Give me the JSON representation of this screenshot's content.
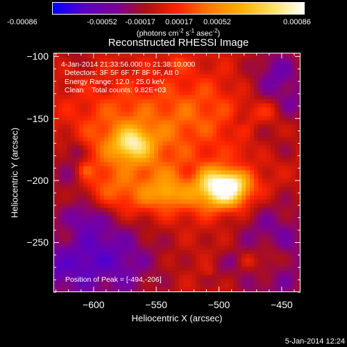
{
  "colorbar": {
    "ticks": [
      "-0.00086",
      "-0.00052",
      "-0.00017",
      "0.00017",
      "0.00052",
      "0.00086"
    ],
    "units_prefix": "(photons cm",
    "units_exp1": "-2",
    "units_mid1": " s",
    "units_exp2": "-1",
    "units_mid2": " asec",
    "units_exp3": "-2",
    "units_suffix": ")",
    "stops": [
      "#0000ff",
      "#5a00c8",
      "#7a009a",
      "#b01010",
      "#ff2400",
      "#ff7a00",
      "#ffb000",
      "#ffe060",
      "#ffffff"
    ]
  },
  "title": "Reconstructed RHESSI Image",
  "annotations": {
    "time_range": "4-Jan-2014 21:33:56.000 to 21:38:10.000",
    "detectors": "Detectors: 3F 5F 6F 7F 8F 9F, Att 0",
    "energy": "Energy Range: 12.0 - 25.0 keV",
    "clean": "Clean    Total counts: 9.82E+03",
    "peak": "Position of Peak = [-494,-206]"
  },
  "footer": {
    "date": "5-Jan-2014 12:24"
  },
  "chart_data": {
    "type": "heatmap",
    "title": "Reconstructed RHESSI Image",
    "xlabel": "Heliocentric X (arcsec)",
    "ylabel": "Heliocentric Y (arcsec)",
    "xlim": [
      -632,
      -435
    ],
    "ylim": [
      -290,
      -97
    ],
    "xticks": [
      -600,
      -550,
      -500,
      -450
    ],
    "yticks": [
      -100,
      -150,
      -200,
      -250
    ],
    "colorbar_range": [
      -0.00086,
      0.00086
    ],
    "peak": [
      -494,
      -206
    ],
    "secondary_peak": [
      -570,
      -170
    ]
  }
}
